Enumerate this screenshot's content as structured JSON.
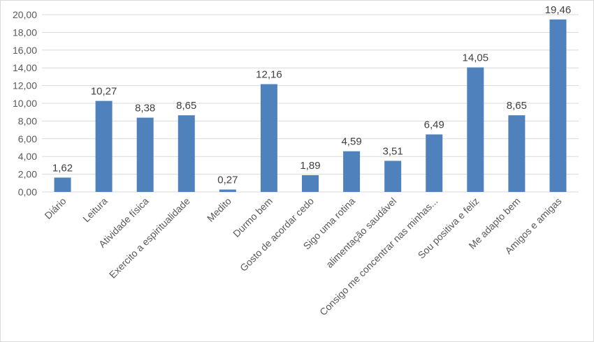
{
  "chart_data": {
    "type": "bar",
    "title": "",
    "xlabel": "",
    "ylabel": "",
    "ylim": [
      0,
      20
    ],
    "yticks": [
      "0,00",
      "2,00",
      "4,00",
      "6,00",
      "8,00",
      "10,00",
      "12,00",
      "14,00",
      "16,00",
      "18,00",
      "20,00"
    ],
    "grid": true,
    "bar_color": "#4f81bd",
    "categories": [
      "Diário",
      "Leitura",
      "Atividade física",
      "Exercito a espiritualidade",
      "Medito",
      "Durmo bem",
      "Gosto de acordar cedo",
      "Sigo uma rotina",
      "alimentação saudável",
      "Consigo me concentrar nas minhas...",
      "Sou positiva e feliz",
      "Me adapto bem",
      "Amigos e amigas"
    ],
    "values": [
      1.62,
      10.27,
      8.38,
      8.65,
      0.27,
      12.16,
      1.89,
      4.59,
      3.51,
      6.49,
      14.05,
      8.65,
      19.46
    ],
    "data_labels": [
      "1,62",
      "10,27",
      "8,38",
      "8,65",
      "0,27",
      "12,16",
      "1,89",
      "4,59",
      "3,51",
      "6,49",
      "14,05",
      "8,65",
      "19,46"
    ]
  }
}
